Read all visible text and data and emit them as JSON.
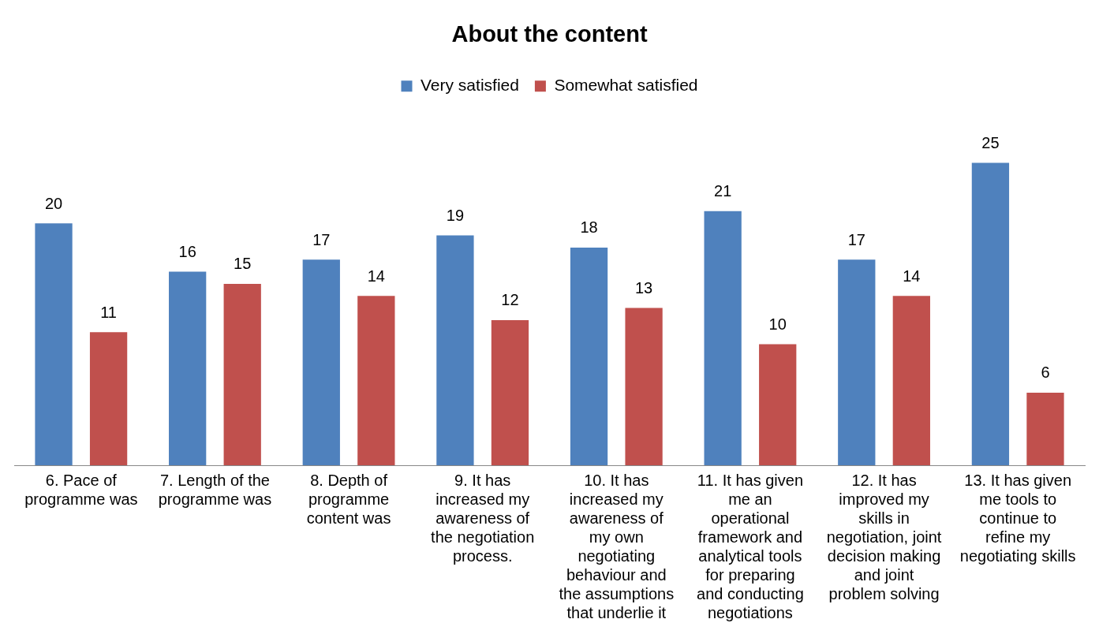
{
  "chart_data": {
    "type": "bar",
    "title": "About the content",
    "categories": [
      "6. Pace of programme was",
      "7. Length of the programme was",
      "8. Depth of programme content was",
      "9. It has increased my awareness of the negotiation process.",
      "10. It has increased my awareness of my own negotiating behaviour and the assumptions that underlie it",
      "11. It has given me an operational framework and analytical tools for preparing and conducting negotiations",
      "12. It has improved my skills in negotiation, joint decision making and joint problem solving",
      "13. It has given me tools to continue to refine my negotiating skills"
    ],
    "series": [
      {
        "name": "Very satisfied",
        "color": "#4f81bd",
        "values": [
          20,
          16,
          17,
          19,
          18,
          21,
          17,
          25
        ]
      },
      {
        "name": "Somewhat satisfied",
        "color": "#c0504d",
        "values": [
          11,
          15,
          14,
          12,
          13,
          10,
          14,
          6
        ]
      }
    ],
    "data_labels": true,
    "legend": "top",
    "grid": false,
    "tick_labels": "x"
  }
}
